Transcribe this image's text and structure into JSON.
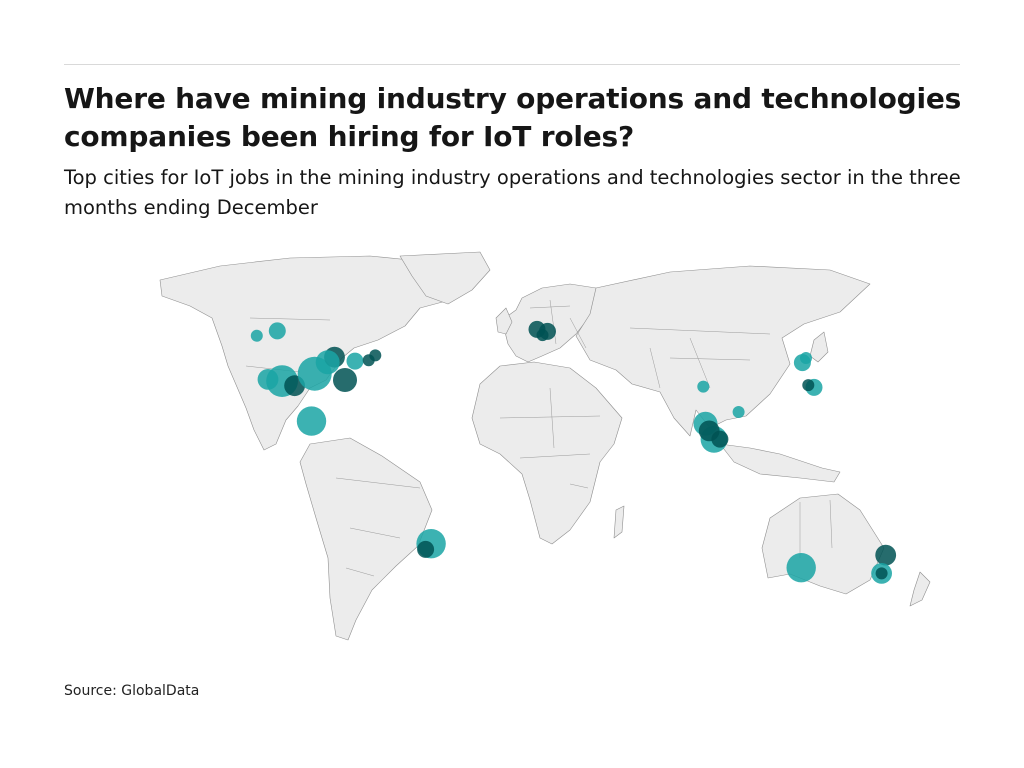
{
  "header": {
    "title": "Where have mining industry operations and technologies companies been hiring for IoT roles?",
    "subtitle": "Top cities for IoT jobs in the mining industry operations and technologies sector in the three months ending December"
  },
  "footer": {
    "source": "Source: GlobalData"
  },
  "colors": {
    "bubble_light": "#1aa5a5",
    "bubble_dark": "#005253",
    "land": "#ececec",
    "border": "#8f8f8f"
  },
  "map_data": {
    "projection": "equirectangular",
    "bubbles": [
      {
        "lon": -123.1,
        "lat": 49.3,
        "size": 1,
        "shade": "light"
      },
      {
        "lon": -114.1,
        "lat": 51.0,
        "size": 2,
        "shade": "light"
      },
      {
        "lon": -118.2,
        "lat": 34.0,
        "size": 3,
        "shade": "light"
      },
      {
        "lon": -112.0,
        "lat": 33.4,
        "size": 7,
        "shade": "light"
      },
      {
        "lon": -106.5,
        "lat": 31.8,
        "size": 3,
        "shade": "dark"
      },
      {
        "lon": -97.7,
        "lat": 36.0,
        "size": 8,
        "shade": "light"
      },
      {
        "lon": -89.0,
        "lat": 41.8,
        "size": 3,
        "shade": "dark"
      },
      {
        "lon": -92.0,
        "lat": 40.0,
        "size": 4,
        "shade": "light"
      },
      {
        "lon": -80.0,
        "lat": 40.4,
        "size": 2,
        "shade": "light"
      },
      {
        "lon": -84.4,
        "lat": 33.8,
        "size": 4,
        "shade": "dark"
      },
      {
        "lon": -74.0,
        "lat": 40.7,
        "size": 1,
        "shade": "dark"
      },
      {
        "lon": -71.1,
        "lat": 42.4,
        "size": 1,
        "shade": "dark"
      },
      {
        "lon": -99.1,
        "lat": 19.4,
        "size": 6,
        "shade": "light"
      },
      {
        "lon": -46.6,
        "lat": -23.5,
        "size": 6,
        "shade": "light"
      },
      {
        "lon": -49.0,
        "lat": -25.5,
        "size": 2,
        "shade": "dark"
      },
      {
        "lon": -0.1,
        "lat": 51.5,
        "size": 2,
        "shade": "dark"
      },
      {
        "lon": 4.5,
        "lat": 50.8,
        "size": 2,
        "shade": "dark"
      },
      {
        "lon": 2.3,
        "lat": 49.5,
        "size": 1,
        "shade": "dark"
      },
      {
        "lon": 72.9,
        "lat": 31.5,
        "size": 1,
        "shade": "light"
      },
      {
        "lon": 88.4,
        "lat": 22.6,
        "size": 1,
        "shade": "light"
      },
      {
        "lon": 73.9,
        "lat": 18.5,
        "size": 4,
        "shade": "light"
      },
      {
        "lon": 77.6,
        "lat": 13.0,
        "size": 5,
        "shade": "light"
      },
      {
        "lon": 75.5,
        "lat": 16.0,
        "size": 3,
        "shade": "dark"
      },
      {
        "lon": 80.2,
        "lat": 13.1,
        "size": 2,
        "shade": "dark"
      },
      {
        "lon": 116.4,
        "lat": 39.9,
        "size": 2,
        "shade": "light"
      },
      {
        "lon": 118.0,
        "lat": 41.5,
        "size": 1,
        "shade": "light"
      },
      {
        "lon": 121.5,
        "lat": 31.2,
        "size": 2,
        "shade": "light"
      },
      {
        "lon": 119.0,
        "lat": 32.0,
        "size": 1,
        "shade": "dark"
      },
      {
        "lon": 115.9,
        "lat": -31.9,
        "size": 6,
        "shade": "light"
      },
      {
        "lon": 153.0,
        "lat": -27.5,
        "size": 3,
        "shade": "dark"
      },
      {
        "lon": 151.2,
        "lat": -33.9,
        "size": 3,
        "shade": "light"
      },
      {
        "lon": 151.2,
        "lat": -33.9,
        "size": 1,
        "shade": "dark"
      }
    ]
  }
}
